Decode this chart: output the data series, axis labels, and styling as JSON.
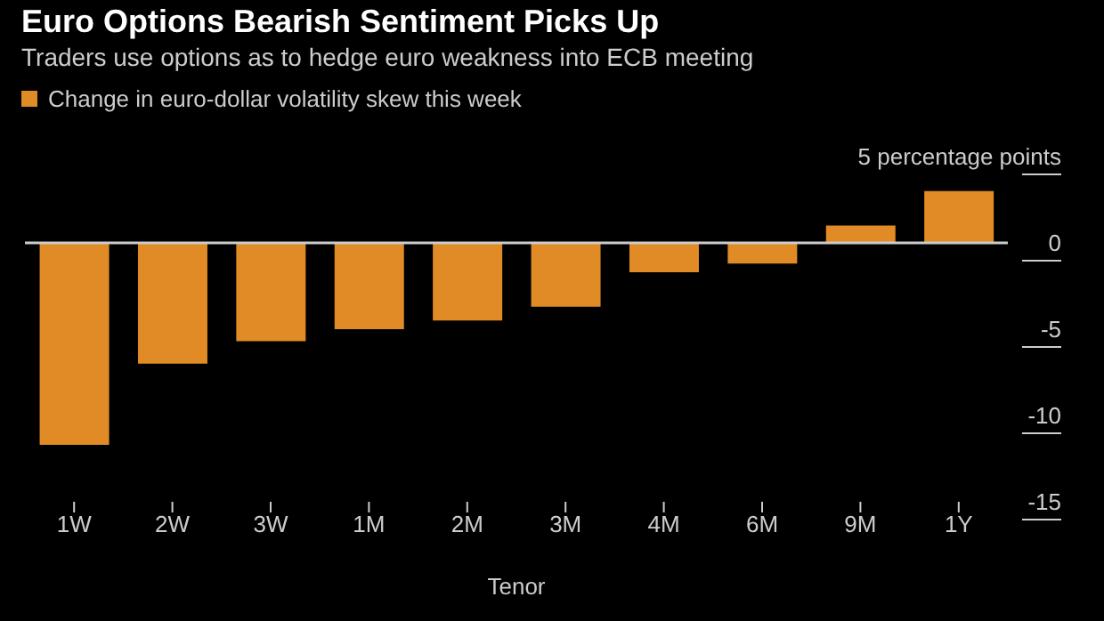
{
  "chart_data": {
    "type": "bar",
    "title": "Euro Options Bearish Sentiment Picks Up",
    "subtitle": "Traders use options as to hedge euro weakness into ECB meeting",
    "xlabel": "Tenor",
    "categories": [
      "1W",
      "2W",
      "3W",
      "1M",
      "2M",
      "3M",
      "4M",
      "6M",
      "9M",
      "1Y"
    ],
    "series": [
      {
        "name": "Change in euro-dollar volatility skew this week",
        "color": "#e08b25",
        "values": [
          -11.7,
          -7.0,
          -5.7,
          -5.0,
          -4.5,
          -3.7,
          -1.7,
          -1.2,
          1.0,
          3.0
        ]
      }
    ],
    "ylim": [
      -15,
      5
    ],
    "yticks": [
      -15,
      -10,
      -5,
      0,
      {
        "value": 5,
        "label": "5 percentage points"
      }
    ],
    "ref_lines": [
      {
        "axis": "y",
        "value": 0,
        "color": "#cccccc"
      }
    ],
    "legend": "top left"
  }
}
